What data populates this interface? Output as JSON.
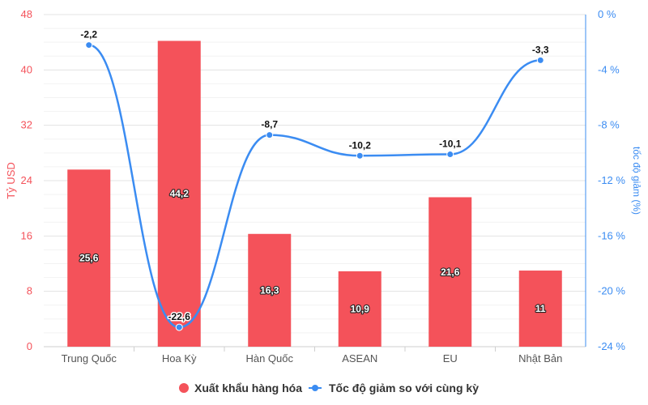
{
  "chart_data": {
    "type": "bar",
    "categories": [
      "Trung Quốc",
      "Hoa Kỳ",
      "Hàn Quốc",
      "ASEAN",
      "EU",
      "Nhật Bản"
    ],
    "series": [
      {
        "name": "Xuất khẩu hàng hóa",
        "type": "bar",
        "axis": "left",
        "color": "#f4525a",
        "values": [
          25.6,
          44.2,
          16.3,
          10.9,
          21.6,
          11
        ],
        "labels": [
          "25,6",
          "44,2",
          "16,3",
          "10,9",
          "21,6",
          "11"
        ]
      },
      {
        "name": "Tốc độ giảm so với cùng kỳ",
        "type": "line",
        "axis": "right",
        "color": "#3b8cf2",
        "values": [
          -2.2,
          -22.6,
          -8.7,
          -10.2,
          -10.1,
          -3.3
        ],
        "labels": [
          "-2,2",
          "-22,6",
          "-8,7",
          "-10,2",
          "-10,1",
          "-3,3"
        ]
      }
    ],
    "ylabel_left": "Tỷ USD",
    "ylabel_right": "tốc độ giảm (%)",
    "ylim_left": [
      0,
      48
    ],
    "ylim_right": [
      -24,
      0
    ],
    "yticks_left": [
      "0",
      "8",
      "16",
      "24",
      "32",
      "40",
      "48"
    ],
    "yticks_right": [
      "-24 %",
      "-20 %",
      "-16 %",
      "-12 %",
      "-8 %",
      "-4 %",
      "0 %"
    ],
    "grid": true,
    "legend_position": "bottom"
  }
}
